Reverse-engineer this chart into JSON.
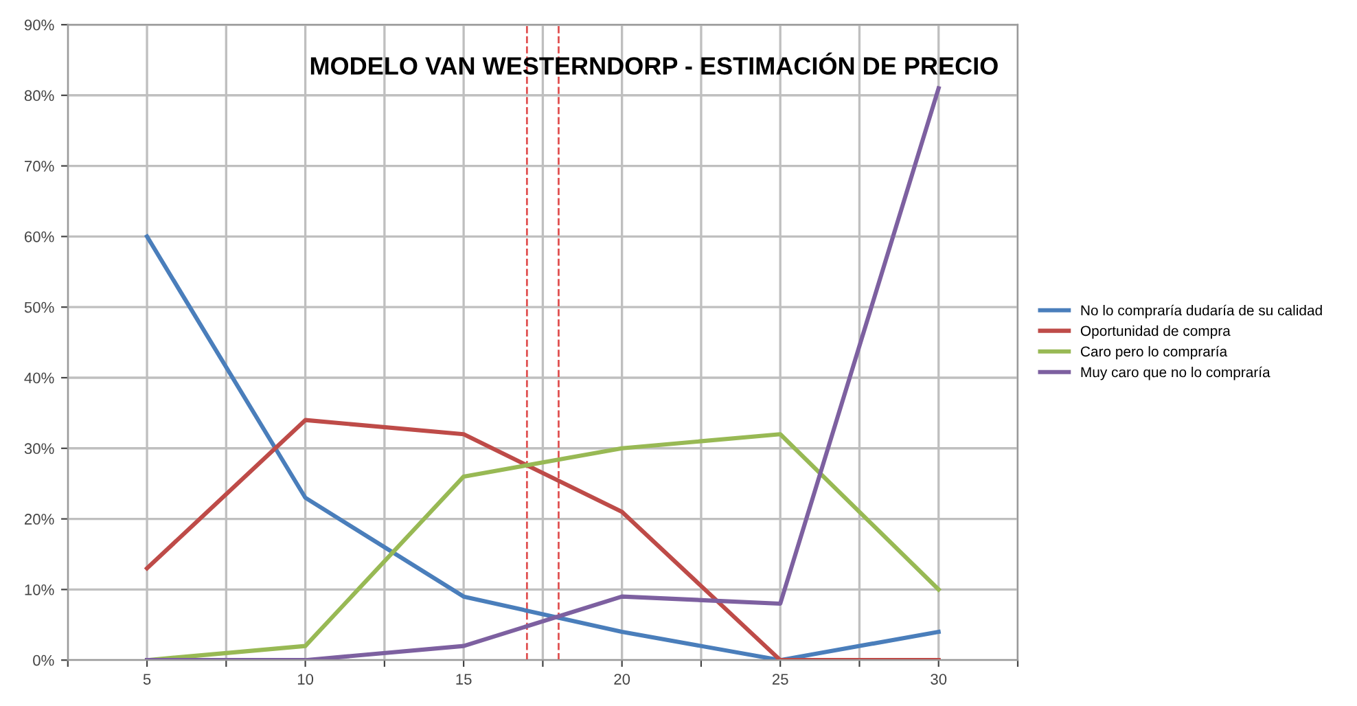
{
  "chart_data": {
    "type": "line",
    "title": "MODELO VAN WESTERNDORP - ESTIMACIÓN DE PRECIO",
    "x": [
      5,
      10,
      15,
      20,
      25,
      30
    ],
    "series": [
      {
        "name": "No lo compraría dudaría de su calidad",
        "color": "#4a7ebb",
        "values": [
          60,
          23,
          9,
          4,
          0,
          4
        ]
      },
      {
        "name": "Oportunidad de compra",
        "color": "#be4b48",
        "values": [
          13,
          34,
          32,
          21,
          0,
          0
        ]
      },
      {
        "name": "Caro pero lo compraría",
        "color": "#98b954",
        "values": [
          0,
          2,
          26,
          30,
          32,
          10
        ]
      },
      {
        "name": "Muy caro que no lo compraría",
        "color": "#7d60a0",
        "values": [
          0,
          0,
          2,
          9,
          8,
          81
        ]
      }
    ],
    "xlim": [
      2.5,
      32.5
    ],
    "xticks": [
      {
        "value": 2.5,
        "label": null
      },
      5,
      {
        "value": 7.5,
        "label": null
      },
      10,
      {
        "value": 12.5,
        "label": null
      },
      15,
      {
        "value": 17.5,
        "label": null
      },
      20,
      {
        "value": 22.5,
        "label": null
      },
      25,
      {
        "value": 27.5,
        "label": null
      },
      30,
      {
        "value": 32.5,
        "label": null
      }
    ],
    "ylim": [
      0,
      90
    ],
    "yticks": [
      {
        "value": 0,
        "label": "0%"
      },
      {
        "value": 10,
        "label": "10%"
      },
      {
        "value": 20,
        "label": "20%"
      },
      {
        "value": 30,
        "label": "30%"
      },
      {
        "value": 40,
        "label": "40%"
      },
      {
        "value": 50,
        "label": "50%"
      },
      {
        "value": 60,
        "label": "60%"
      },
      {
        "value": 70,
        "label": "70%"
      },
      {
        "value": 80,
        "label": "80%"
      },
      {
        "value": 90,
        "label": "90%"
      }
    ],
    "ref_lines": [
      {
        "axis": "x",
        "value": 17,
        "color": "#e05050",
        "line_style": "dashed"
      },
      {
        "axis": "x",
        "value": 18,
        "color": "#e05050",
        "line_style": "dashed"
      }
    ],
    "grid": true,
    "legend": "right",
    "marker": "none",
    "line_style": "solid"
  }
}
